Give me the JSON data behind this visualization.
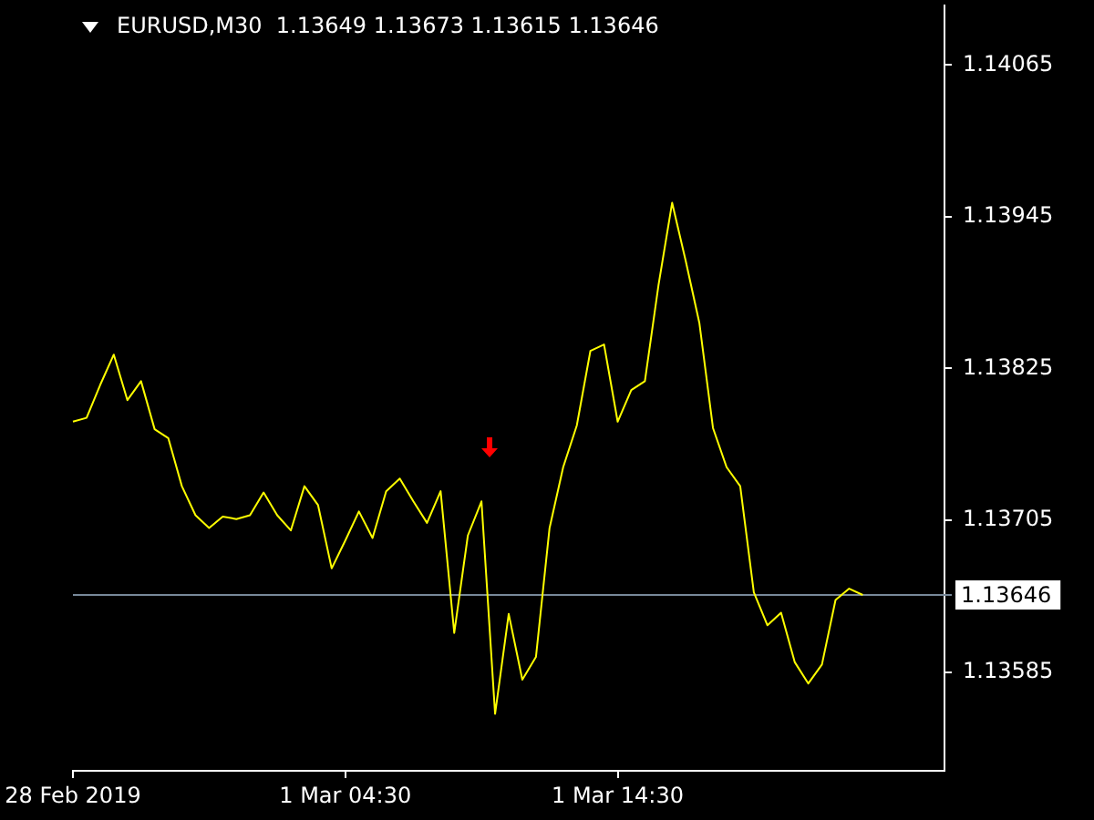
{
  "chart_data": {
    "type": "line",
    "title": "EURUSD,M30  1.13649 1.13673 1.13615 1.13646",
    "categories": [
      "28 Feb 2019",
      null,
      null,
      null,
      null,
      null,
      null,
      null,
      null,
      null,
      null,
      null,
      null,
      null,
      null,
      null,
      null,
      null,
      null,
      null,
      "1 Mar 04:30",
      null,
      null,
      null,
      null,
      null,
      null,
      null,
      null,
      null,
      null,
      null,
      null,
      null,
      null,
      null,
      null,
      null,
      null,
      null,
      "1 Mar 14:30",
      null,
      null,
      null,
      null,
      null,
      null,
      null,
      null,
      null,
      null,
      null,
      null,
      null,
      null,
      null,
      null,
      null,
      null,
      null,
      null,
      null,
      null,
      null,
      null
    ],
    "series": [
      {
        "color": "#ffff00",
        "values": [
          1.13783,
          1.13786,
          1.13812,
          1.13836,
          1.138,
          1.13815,
          1.13777,
          1.1377,
          1.13732,
          1.13709,
          1.13699,
          1.13708,
          1.13706,
          1.13709,
          1.13727,
          1.13709,
          1.13697,
          1.13732,
          1.13717,
          1.13667,
          1.13689,
          1.13712,
          1.13691,
          1.13728,
          1.13738,
          1.1372,
          1.13703,
          1.13728,
          1.13616,
          1.13693,
          1.1372,
          1.13552,
          1.13631,
          1.13579,
          1.13597,
          1.13699,
          1.13747,
          1.1378,
          1.13839,
          1.13844,
          1.13783,
          1.13808,
          1.13815,
          1.13891,
          1.13956,
          1.1391,
          1.13861,
          1.13778,
          1.13747,
          1.13732,
          1.13648,
          1.13622,
          1.13632,
          1.13593,
          1.13576,
          1.13591,
          1.13642,
          1.13651,
          1.13646,
          null,
          null,
          null,
          null,
          null,
          null
        ]
      }
    ],
    "ylim": [
      1.13507,
      1.14112
    ],
    "yticks": [
      1.13585,
      1.13705,
      1.13825,
      1.13945,
      1.14065
    ],
    "ref_lines": [
      {
        "axis": "y",
        "value": 1.13646,
        "label": "1.13646",
        "color": "#778899"
      }
    ],
    "grid": false,
    "legend": false
  }
}
